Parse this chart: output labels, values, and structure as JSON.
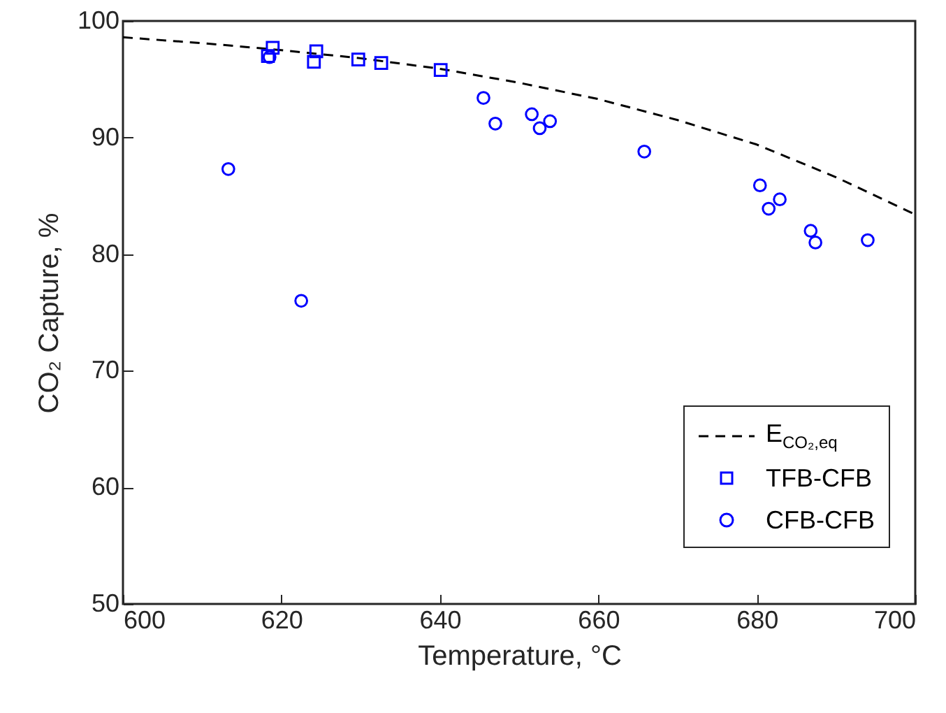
{
  "chart_data": {
    "type": "scatter",
    "xlabel": "Temperature, °C",
    "ylabel": "CO₂ Capture, %",
    "xlim": [
      600,
      700
    ],
    "xticks": [
      600,
      620,
      640,
      660,
      680,
      700
    ],
    "ylim": [
      50,
      100
    ],
    "yticks": [
      50,
      60,
      70,
      80,
      90,
      100
    ],
    "grid": false,
    "legend": "bottom right",
    "series": [
      {
        "name": "E$_{CO₂,eq}$",
        "type": "line",
        "color": "#000000",
        "line_style": "dashed",
        "marker": "none",
        "x": [
          600,
          610,
          620,
          630,
          640,
          650,
          660,
          670,
          680,
          690,
          700
        ],
        "values": [
          98.6,
          98.1,
          97.5,
          96.8,
          95.9,
          94.7,
          93.3,
          91.5,
          89.4,
          86.6,
          83.4
        ]
      },
      {
        "name": "TFB-CFB",
        "color": "#0000ff",
        "marker": "square",
        "x": [
          618.9,
          618.3,
          624.4,
          624.1,
          629.7,
          632.6,
          640.1
        ],
        "values": [
          97.7,
          97.0,
          97.4,
          96.5,
          96.7,
          96.4,
          95.8
        ]
      },
      {
        "name": "CFB-CFB",
        "color": "#0000ff",
        "marker": "circle",
        "x": [
          613.3,
          618.5,
          622.5,
          645.5,
          647.0,
          651.6,
          652.6,
          653.9,
          665.8,
          680.4,
          681.5,
          682.9,
          686.8,
          687.4,
          694.0
        ],
        "values": [
          87.3,
          96.9,
          76.0,
          93.4,
          91.2,
          92.0,
          90.8,
          91.4,
          88.8,
          85.9,
          83.9,
          84.7,
          82.0,
          81.0,
          81.2
        ]
      }
    ]
  }
}
